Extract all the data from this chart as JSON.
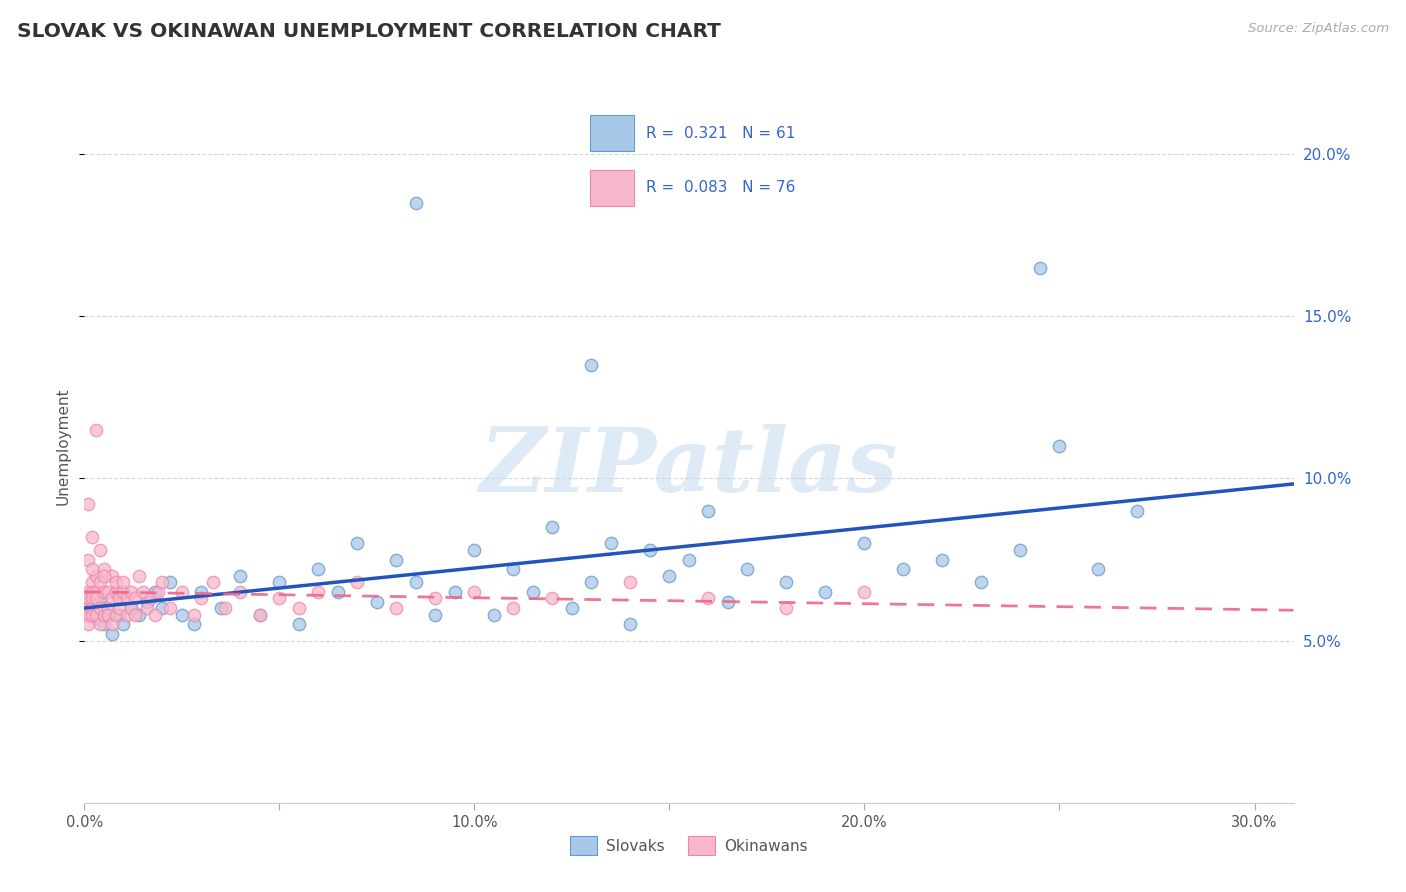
{
  "title": "SLOVAK VS OKINAWAN UNEMPLOYMENT CORRELATION CHART",
  "source_text": "Source: ZipAtlas.com",
  "ylabel": "Unemployment",
  "xlim": [
    0.0,
    0.31
  ],
  "ylim": [
    0.0,
    0.22
  ],
  "xtick_vals": [
    0.0,
    0.05,
    0.1,
    0.15,
    0.2,
    0.25,
    0.3
  ],
  "xtick_labels": [
    "0.0%",
    "",
    "10.0%",
    "",
    "20.0%",
    "",
    "30.0%"
  ],
  "ytick_vals": [
    0.05,
    0.1,
    0.15,
    0.2
  ],
  "ytick_labels": [
    "5.0%",
    "10.0%",
    "15.0%",
    "20.0%"
  ],
  "blue_face": "#A8C8E8",
  "blue_edge": "#6699CC",
  "pink_face": "#F8B8CC",
  "pink_edge": "#EE88AA",
  "blue_line_color": "#2255BB",
  "pink_line_color": "#EE6688",
  "grid_color": "#CCCCCC",
  "title_color": "#333333",
  "right_tick_color": "#3366CC",
  "source_color": "#AAAAAA",
  "legend_text_color": "#3366CC",
  "legend_border_color": "#CCCCCC",
  "watermark_color": "#C8DCF0",
  "blue_scatter_x": [
    0.001,
    0.001,
    0.002,
    0.003,
    0.004,
    0.005,
    0.006,
    0.007,
    0.008,
    0.009,
    0.01,
    0.012,
    0.014,
    0.016,
    0.018,
    0.02,
    0.022,
    0.025,
    0.028,
    0.03,
    0.035,
    0.04,
    0.045,
    0.05,
    0.055,
    0.06,
    0.065,
    0.07,
    0.075,
    0.08,
    0.085,
    0.09,
    0.095,
    0.1,
    0.105,
    0.11,
    0.115,
    0.12,
    0.125,
    0.13,
    0.135,
    0.14,
    0.145,
    0.15,
    0.155,
    0.16,
    0.165,
    0.17,
    0.18,
    0.19,
    0.2,
    0.21,
    0.22,
    0.23,
    0.24,
    0.25,
    0.26,
    0.27,
    0.085,
    0.245,
    0.13
  ],
  "blue_scatter_y": [
    0.06,
    0.058,
    0.062,
    0.057,
    0.063,
    0.055,
    0.058,
    0.052,
    0.065,
    0.058,
    0.055,
    0.06,
    0.058,
    0.062,
    0.065,
    0.06,
    0.068,
    0.058,
    0.055,
    0.065,
    0.06,
    0.07,
    0.058,
    0.068,
    0.055,
    0.072,
    0.065,
    0.08,
    0.062,
    0.075,
    0.068,
    0.058,
    0.065,
    0.078,
    0.058,
    0.072,
    0.065,
    0.085,
    0.06,
    0.068,
    0.08,
    0.055,
    0.078,
    0.07,
    0.075,
    0.09,
    0.062,
    0.072,
    0.068,
    0.065,
    0.08,
    0.072,
    0.075,
    0.068,
    0.078,
    0.11,
    0.072,
    0.09,
    0.185,
    0.165,
    0.135
  ],
  "pink_scatter_x": [
    0.0005,
    0.0005,
    0.001,
    0.001,
    0.001,
    0.001,
    0.001,
    0.002,
    0.002,
    0.002,
    0.002,
    0.002,
    0.003,
    0.003,
    0.003,
    0.003,
    0.004,
    0.004,
    0.004,
    0.005,
    0.005,
    0.005,
    0.006,
    0.006,
    0.006,
    0.007,
    0.007,
    0.007,
    0.008,
    0.008,
    0.008,
    0.009,
    0.009,
    0.01,
    0.01,
    0.011,
    0.011,
    0.012,
    0.012,
    0.013,
    0.013,
    0.014,
    0.015,
    0.016,
    0.017,
    0.018,
    0.019,
    0.02,
    0.022,
    0.025,
    0.028,
    0.03,
    0.033,
    0.036,
    0.04,
    0.045,
    0.05,
    0.055,
    0.06,
    0.07,
    0.08,
    0.09,
    0.1,
    0.11,
    0.12,
    0.14,
    0.16,
    0.18,
    0.2,
    0.003,
    0.001,
    0.002,
    0.004,
    0.001,
    0.002,
    0.005
  ],
  "pink_scatter_y": [
    0.062,
    0.058,
    0.065,
    0.06,
    0.058,
    0.063,
    0.055,
    0.068,
    0.06,
    0.065,
    0.058,
    0.063,
    0.07,
    0.065,
    0.058,
    0.063,
    0.06,
    0.068,
    0.055,
    0.065,
    0.058,
    0.072,
    0.06,
    0.065,
    0.058,
    0.063,
    0.07,
    0.055,
    0.065,
    0.068,
    0.058,
    0.063,
    0.06,
    0.065,
    0.068,
    0.058,
    0.063,
    0.06,
    0.065,
    0.058,
    0.063,
    0.07,
    0.065,
    0.06,
    0.063,
    0.058,
    0.065,
    0.068,
    0.06,
    0.065,
    0.058,
    0.063,
    0.068,
    0.06,
    0.065,
    0.058,
    0.063,
    0.06,
    0.065,
    0.068,
    0.06,
    0.063,
    0.065,
    0.06,
    0.063,
    0.068,
    0.063,
    0.06,
    0.065,
    0.115,
    0.092,
    0.082,
    0.078,
    0.075,
    0.072,
    0.07
  ],
  "legend_label1": "Slovaks",
  "legend_label2": "Okinawans",
  "watermark": "ZIPatlas"
}
